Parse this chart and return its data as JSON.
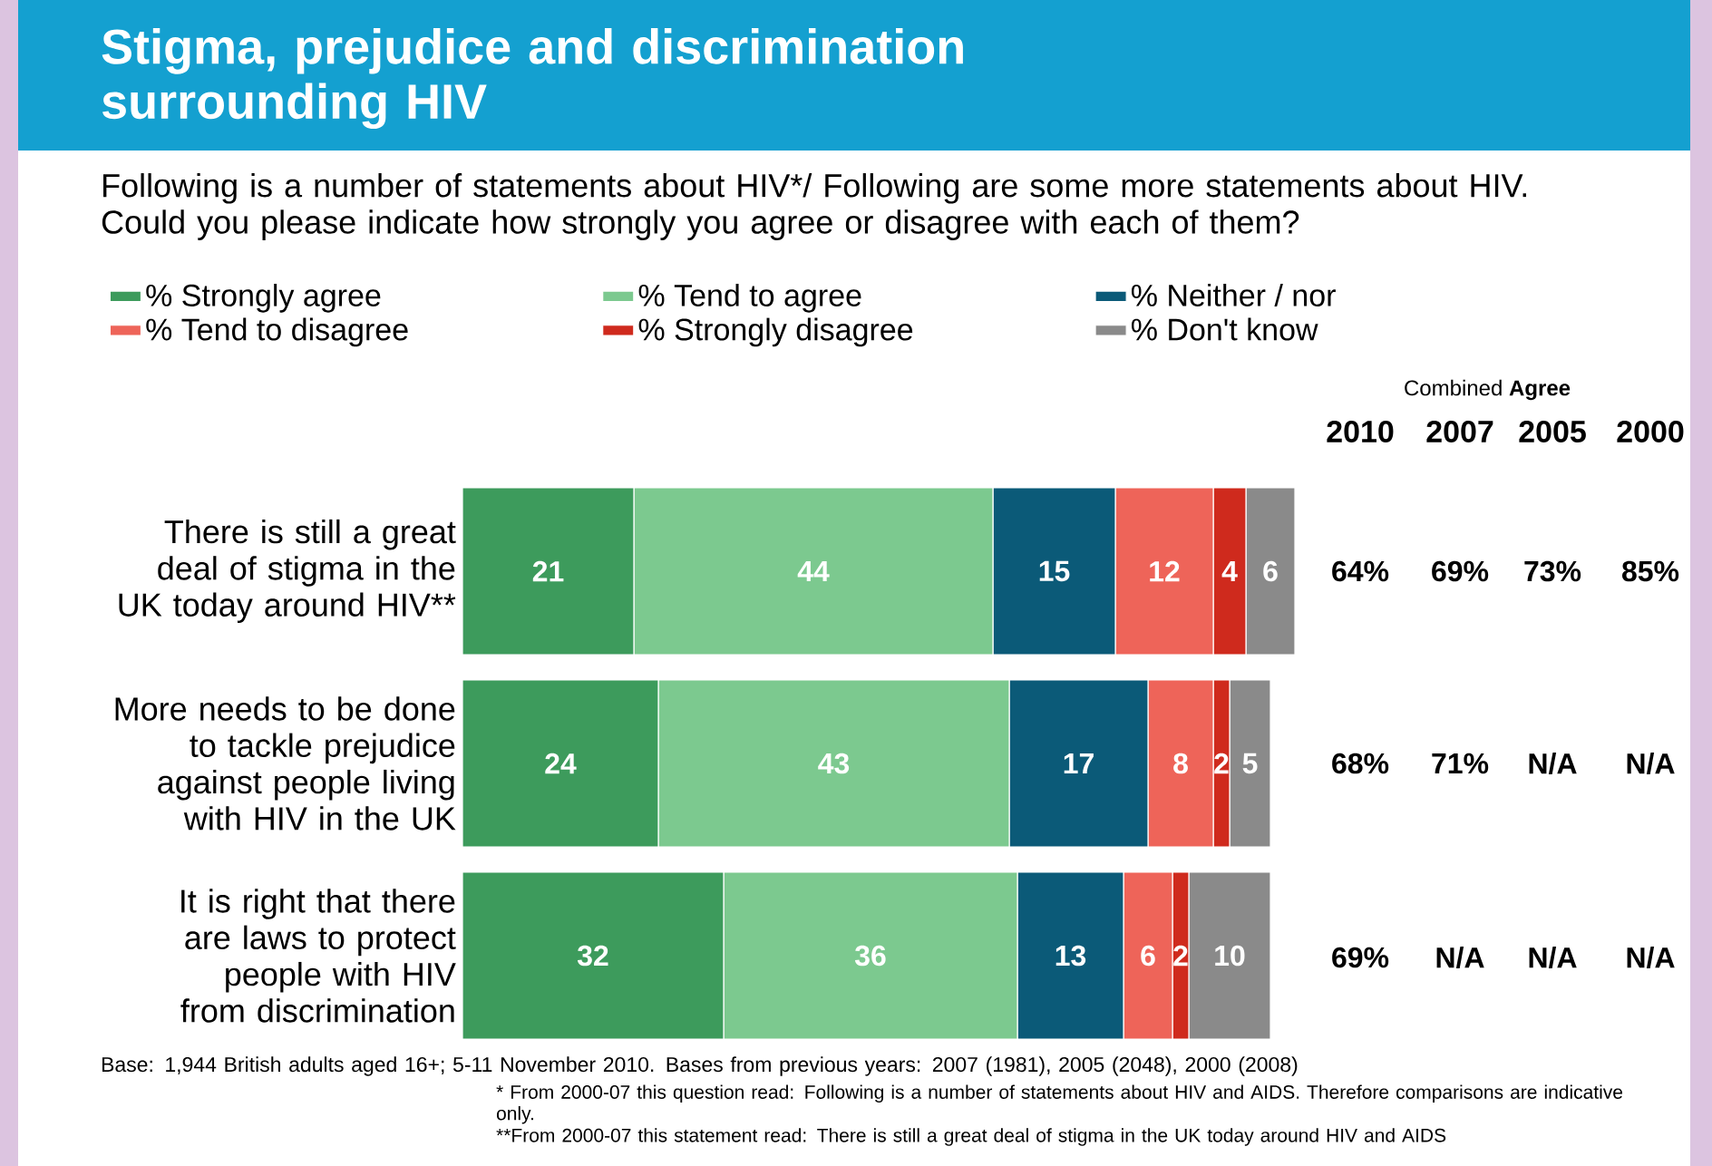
{
  "chart_data": {
    "type": "bar",
    "orientation": "horizontal",
    "stacked": true,
    "data_labels": true,
    "legend": "top",
    "title": "Stigma, prejudice and discrimination surrounding HIV",
    "subtitle": "Following is a number of statements about HIV*/ Following are some more statements about HIV. Could you please indicate how strongly you agree or disagree with each of them?",
    "categories": [
      "There is still a great deal of stigma in the UK today around HIV**",
      "More needs to be done to tackle prejudice against people living with HIV in the UK",
      "It is right that there are laws to protect people with HIV from discrimination"
    ],
    "series": [
      {
        "name": "% Strongly agree",
        "color": "#3d9b5c",
        "values": [
          21,
          24,
          32
        ]
      },
      {
        "name": "% Tend to agree",
        "color": "#7cc98f",
        "values": [
          44,
          43,
          36
        ]
      },
      {
        "name": "% Neither / nor",
        "color": "#0b5a78",
        "values": [
          15,
          17,
          13
        ]
      },
      {
        "name": "% Tend to disagree",
        "color": "#ee6459",
        "values": [
          12,
          8,
          6
        ]
      },
      {
        "name": "% Strongly disagree",
        "color": "#cf2a1d",
        "values": [
          4,
          2,
          2
        ]
      },
      {
        "name": "% Don't know",
        "color": "#8a8a8a",
        "values": [
          6,
          5,
          10
        ]
      }
    ],
    "annotations": [
      "Combined **Agree**",
      "2010",
      "2007",
      "2005",
      "2000",
      "64%",
      "69%",
      "73%",
      "85%",
      "68%",
      "71%",
      "N/A",
      "N/A",
      "69%",
      "N/A",
      "N/A",
      "N/A",
      "Base: 1,944 British adults aged 16+; 5-11 November 2010. Bases from previous years: 2007 (1981), 2005 (2048), 2000 (2008)",
      "* From 2000-07 this question read: Following is a number of statements about HIV and AIDS. Therefore comparisons are indicative only.",
      "**From 2000-07 this statement read: There is still a great deal of stigma in the UK today around HIV and AIDS"
    ]
  }
}
